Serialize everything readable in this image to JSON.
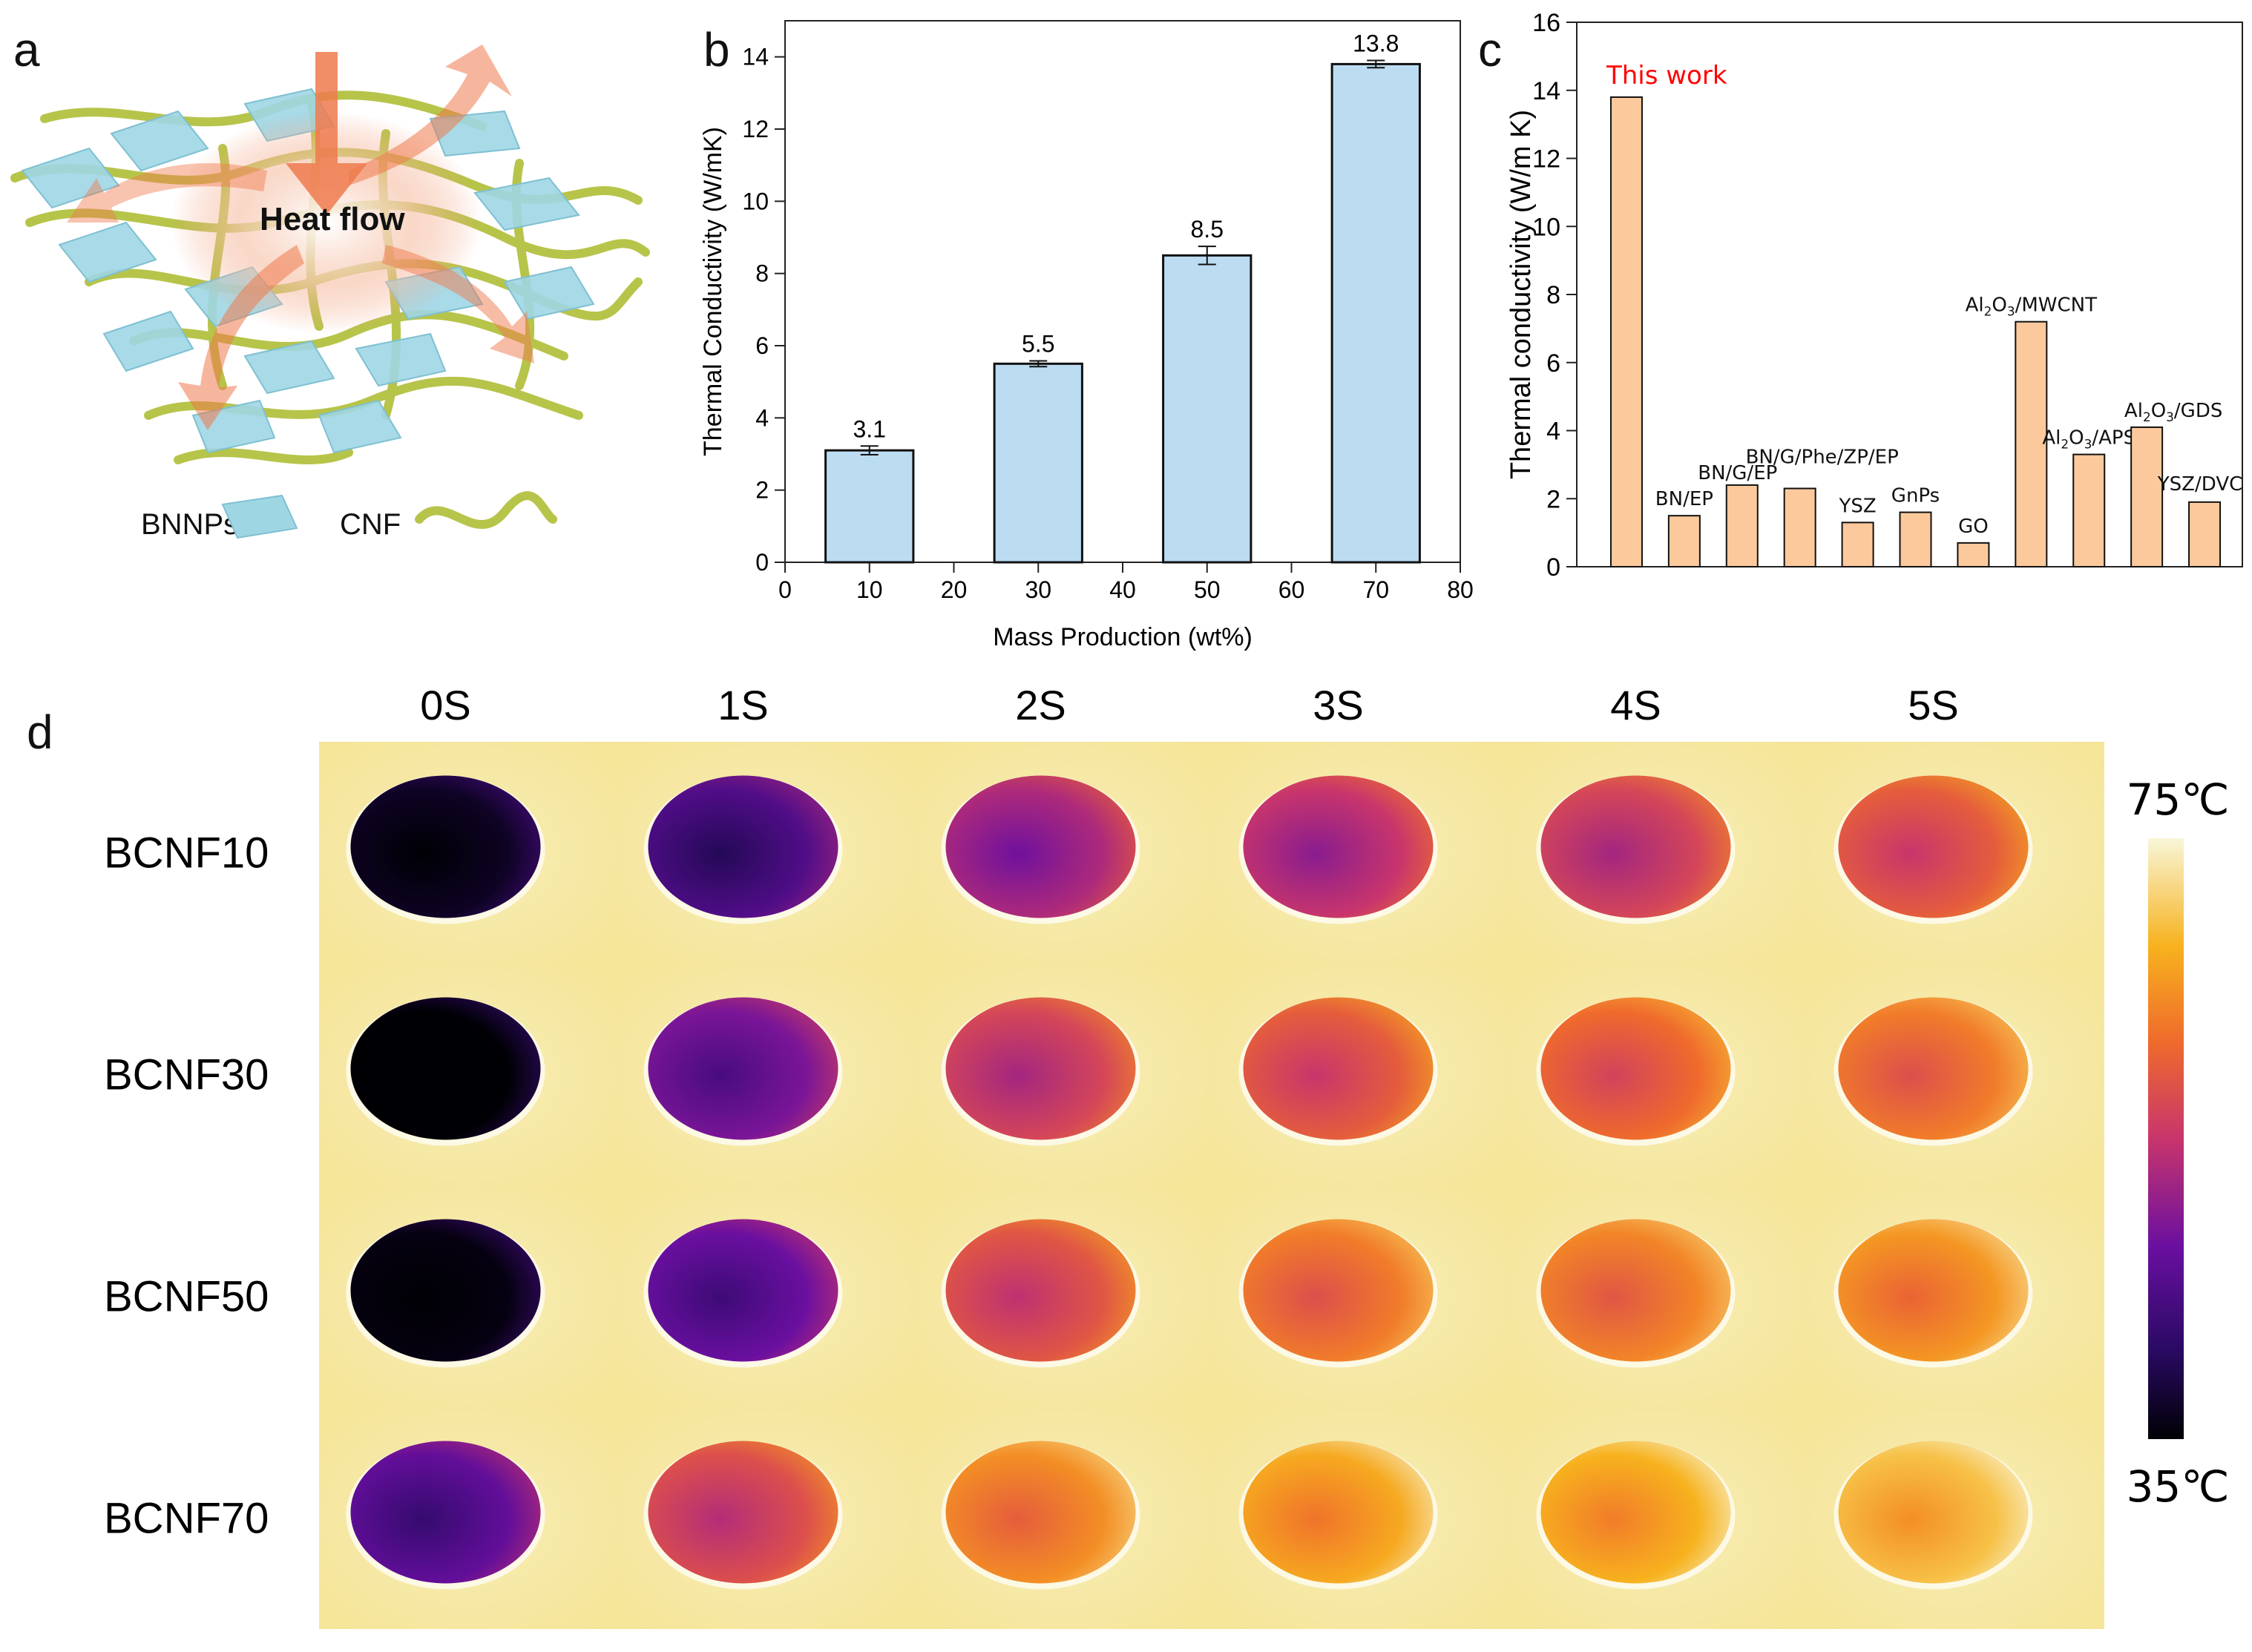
{
  "panel_labels": {
    "a": "a",
    "b": "b",
    "c": "c",
    "d": "d"
  },
  "schematic": {
    "heat_flow": "Heat flow",
    "legend_bnnps": "BNNPs",
    "legend_cnf": "CNF"
  },
  "chart_data": [
    {
      "type": "bar",
      "id": "b",
      "x": [
        10,
        30,
        50,
        70
      ],
      "values": [
        3.1,
        5.5,
        8.5,
        13.8
      ],
      "errors": [
        0.12,
        0.08,
        0.25,
        0.1
      ],
      "data_labels": [
        "3.1",
        "5.5",
        "8.5",
        "13.8"
      ],
      "xlabel": "Mass Production (wt%)",
      "ylabel": "Thermal Conductivity (W/mK)",
      "xlim": [
        0,
        80
      ],
      "ylim": [
        0,
        15
      ],
      "xticks": [
        "0",
        "10",
        "20",
        "30",
        "40",
        "50",
        "60",
        "70",
        "80"
      ],
      "yticks": [
        "0",
        "2",
        "4",
        "6",
        "8",
        "10",
        "12",
        "14"
      ],
      "bar_color": "#bcdcf2",
      "grid": false
    },
    {
      "type": "bar",
      "id": "c",
      "categories": [
        "This work",
        "BN/EP",
        "BN/G/EP",
        "BN/G/Phe/ZP/EP",
        "YSZ",
        "GnPs",
        "GO",
        "Al2O3/MWCNT",
        "Al2O3/APS",
        "Al2O3/GDS",
        "YSZ/DVC"
      ],
      "values": [
        13.8,
        1.5,
        2.4,
        2.3,
        1.3,
        1.6,
        0.7,
        7.2,
        3.3,
        4.1,
        1.9
      ],
      "label_parts": [
        [
          {
            "t": "This work"
          }
        ],
        [
          {
            "t": "BN/EP"
          }
        ],
        [
          {
            "t": "BN/G/EP"
          }
        ],
        [
          {
            "t": "BN/G/Phe/ZP/EP"
          }
        ],
        [
          {
            "t": "YSZ"
          }
        ],
        [
          {
            "t": "GnPs"
          }
        ],
        [
          {
            "t": "GO"
          }
        ],
        [
          {
            "t": "Al"
          },
          {
            "t": "2",
            "sub": true
          },
          {
            "t": "O"
          },
          {
            "t": "3",
            "sub": true
          },
          {
            "t": "/MWCNT"
          }
        ],
        [
          {
            "t": "Al"
          },
          {
            "t": "2",
            "sub": true
          },
          {
            "t": "O"
          },
          {
            "t": "3",
            "sub": true
          },
          {
            "t": "/APS"
          }
        ],
        [
          {
            "t": "Al"
          },
          {
            "t": "2",
            "sub": true
          },
          {
            "t": "O"
          },
          {
            "t": "3",
            "sub": true
          },
          {
            "t": "/GDS"
          }
        ],
        [
          {
            "t": "YSZ/DVC"
          }
        ]
      ],
      "ylabel": "Thermal conductivity (W/m K)",
      "ylim": [
        0,
        16
      ],
      "yticks": [
        "0",
        "2",
        "4",
        "6",
        "8",
        "10",
        "12",
        "14",
        "16"
      ],
      "bar_color": "#fcc99d",
      "highlight_color": "#ff0000",
      "grid": false
    }
  ],
  "thermal": {
    "times": [
      "0S",
      "1S",
      "2S",
      "3S",
      "4S",
      "5S"
    ],
    "samples": [
      "BCNF10",
      "BCNF30",
      "BCNF50",
      "BCNF70"
    ],
    "heat_level": [
      [
        0.05,
        0.25,
        0.45,
        0.5,
        0.55,
        0.62
      ],
      [
        0.0,
        0.35,
        0.55,
        0.62,
        0.66,
        0.7
      ],
      [
        0.02,
        0.32,
        0.6,
        0.7,
        0.72,
        0.76
      ],
      [
        0.3,
        0.58,
        0.74,
        0.8,
        0.82,
        0.86
      ]
    ],
    "colorbar_max": "75℃",
    "colorbar_min": "35℃",
    "background_color": "#f7e9a6"
  }
}
